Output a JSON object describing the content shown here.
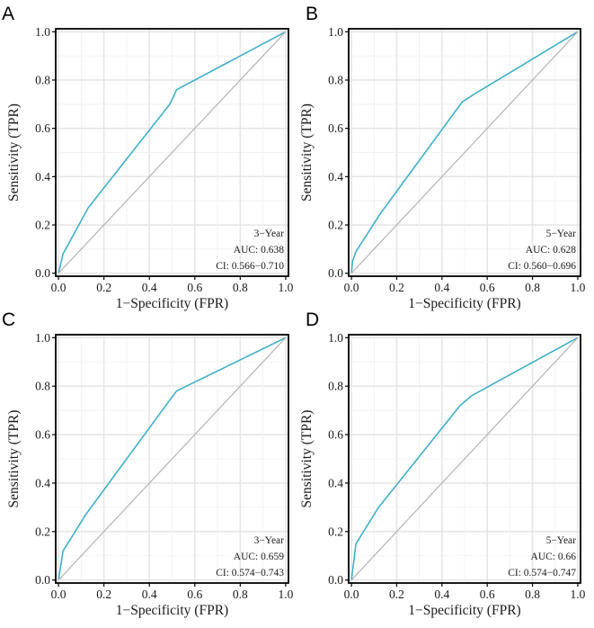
{
  "colors": {
    "roc_curve": "#3fb0c8",
    "diagonal": "#b3b3b3",
    "grid_major": "#e6e6e6",
    "grid_minor": "#f2f2f2",
    "frame": "#000000"
  },
  "chart_data": [
    {
      "panel": "A",
      "type": "line",
      "xlabel": "1−Specificity (FPR)",
      "ylabel": "Sensitivity (TPR)",
      "xlim": [
        0,
        1
      ],
      "ylim": [
        0,
        1
      ],
      "xticks": [
        "0.0",
        "0.2",
        "0.4",
        "0.6",
        "0.8",
        "1.0"
      ],
      "yticks": [
        "0.0",
        "0.2",
        "0.4",
        "0.6",
        "0.8",
        "1.0"
      ],
      "grid": true,
      "series": [
        {
          "name": "ROC",
          "x": [
            0,
            0.02,
            0.13,
            0.49,
            0.52,
            1.0
          ],
          "y": [
            0,
            0.08,
            0.27,
            0.7,
            0.76,
            1.0
          ]
        },
        {
          "name": "reference",
          "x": [
            0,
            1
          ],
          "y": [
            0,
            1
          ]
        }
      ],
      "annotation": {
        "label": "3−Year",
        "auc": "AUC: 0.638",
        "ci": "CI: 0.566−0.710",
        "position": "bottom-right"
      }
    },
    {
      "panel": "B",
      "type": "line",
      "xlabel": "1−Specificity (FPR)",
      "ylabel": "Sensitivity (TPR)",
      "xlim": [
        0,
        1
      ],
      "ylim": [
        0,
        1
      ],
      "xticks": [
        "0.0",
        "0.2",
        "0.4",
        "0.6",
        "0.8",
        "1.0"
      ],
      "yticks": [
        "0.0",
        "0.2",
        "0.4",
        "0.6",
        "0.8",
        "1.0"
      ],
      "grid": true,
      "series": [
        {
          "name": "ROC",
          "x": [
            0,
            0.005,
            0.02,
            0.13,
            0.49,
            0.54,
            1.0
          ],
          "y": [
            0,
            0.05,
            0.09,
            0.25,
            0.71,
            0.74,
            1.0
          ]
        },
        {
          "name": "reference",
          "x": [
            0,
            1
          ],
          "y": [
            0,
            1
          ]
        }
      ],
      "annotation": {
        "label": "5−Year",
        "auc": "AUC: 0.628",
        "ci": "CI: 0.560−0.696",
        "position": "bottom-right"
      }
    },
    {
      "panel": "C",
      "type": "line",
      "xlabel": "1−Specificity (FPR)",
      "ylabel": "Sensitivity (TPR)",
      "xlim": [
        0,
        1
      ],
      "ylim": [
        0,
        1
      ],
      "xticks": [
        "0.0",
        "0.2",
        "0.4",
        "0.6",
        "0.8",
        "1.0"
      ],
      "yticks": [
        "0.0",
        "0.2",
        "0.4",
        "0.6",
        "0.8",
        "1.0"
      ],
      "grid": true,
      "series": [
        {
          "name": "ROC",
          "x": [
            0,
            0.02,
            0.12,
            0.48,
            0.52,
            1.0
          ],
          "y": [
            0,
            0.12,
            0.27,
            0.73,
            0.78,
            1.0
          ]
        },
        {
          "name": "reference",
          "x": [
            0,
            1
          ],
          "y": [
            0,
            1
          ]
        }
      ],
      "annotation": {
        "label": "3−Year",
        "auc": "AUC: 0.659",
        "ci": "CI: 0.574−0.743",
        "position": "bottom-right"
      }
    },
    {
      "panel": "D",
      "type": "line",
      "xlabel": "1−Specificity (FPR)",
      "ylabel": "Sensitivity (TPR)",
      "xlim": [
        0,
        1
      ],
      "ylim": [
        0,
        1
      ],
      "xticks": [
        "0.0",
        "0.2",
        "0.4",
        "0.6",
        "0.8",
        "1.0"
      ],
      "yticks": [
        "0.0",
        "0.2",
        "0.4",
        "0.6",
        "0.8",
        "1.0"
      ],
      "grid": true,
      "series": [
        {
          "name": "ROC",
          "x": [
            0,
            0.02,
            0.12,
            0.48,
            0.53,
            1.0
          ],
          "y": [
            0,
            0.15,
            0.3,
            0.72,
            0.76,
            1.0
          ]
        },
        {
          "name": "reference",
          "x": [
            0,
            1
          ],
          "y": [
            0,
            1
          ]
        }
      ],
      "annotation": {
        "label": "5−Year",
        "auc": "AUC: 0.66",
        "ci": "CI: 0.574−0.747",
        "position": "bottom-right"
      }
    }
  ]
}
